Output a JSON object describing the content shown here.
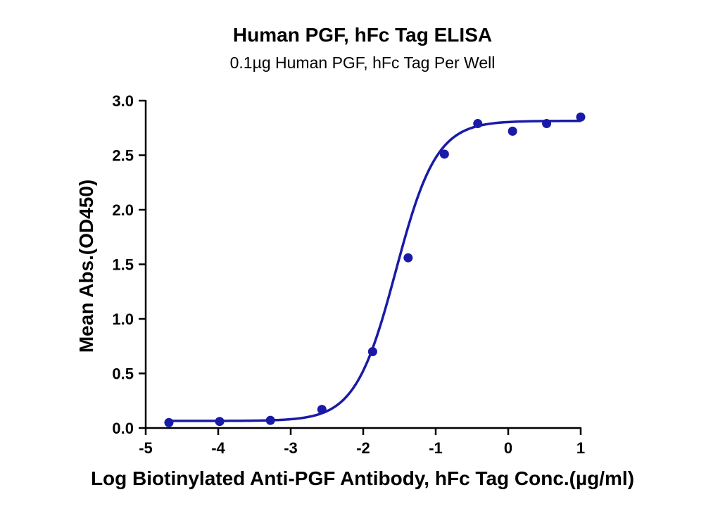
{
  "chart_data": {
    "type": "scatter",
    "title": "Human PGF, hFc Tag ELISA",
    "subtitle": "0.1µg Human PGF, hFc Tag Per Well",
    "xlabel": "Log Biotinylated Anti-PGF Antibody, hFc Tag Conc.(µg/ml)",
    "ylabel": "Mean Abs.(OD450)",
    "xlim": [
      -5,
      1
    ],
    "ylim": [
      0,
      3.0
    ],
    "x_ticks": [
      -5,
      -4,
      -3,
      -2,
      -1,
      0,
      1
    ],
    "x_tick_labels": [
      "-5",
      "-4",
      "-3",
      "-2",
      "-1",
      "0",
      "1"
    ],
    "y_ticks": [
      0,
      0.5,
      1.0,
      1.5,
      2.0,
      2.5,
      3.0
    ],
    "y_tick_labels": [
      "0.0",
      "0.5",
      "1.0",
      "1.5",
      "2.0",
      "2.5",
      "3.0"
    ],
    "grid": false,
    "legend": "none",
    "color": "#1a1aa8",
    "points": {
      "x": [
        -4.68,
        -3.98,
        -3.28,
        -2.57,
        -1.87,
        -1.38,
        -0.88,
        -0.42,
        0.06,
        0.53,
        1.0
      ],
      "y": [
        0.05,
        0.06,
        0.07,
        0.17,
        0.7,
        1.56,
        2.51,
        2.79,
        2.72,
        2.79,
        2.85
      ]
    },
    "fit": {
      "model": "4PL",
      "bottom": 0.065,
      "top": 2.815,
      "log_ec50": -1.55,
      "hill_slope": 1.55
    }
  }
}
